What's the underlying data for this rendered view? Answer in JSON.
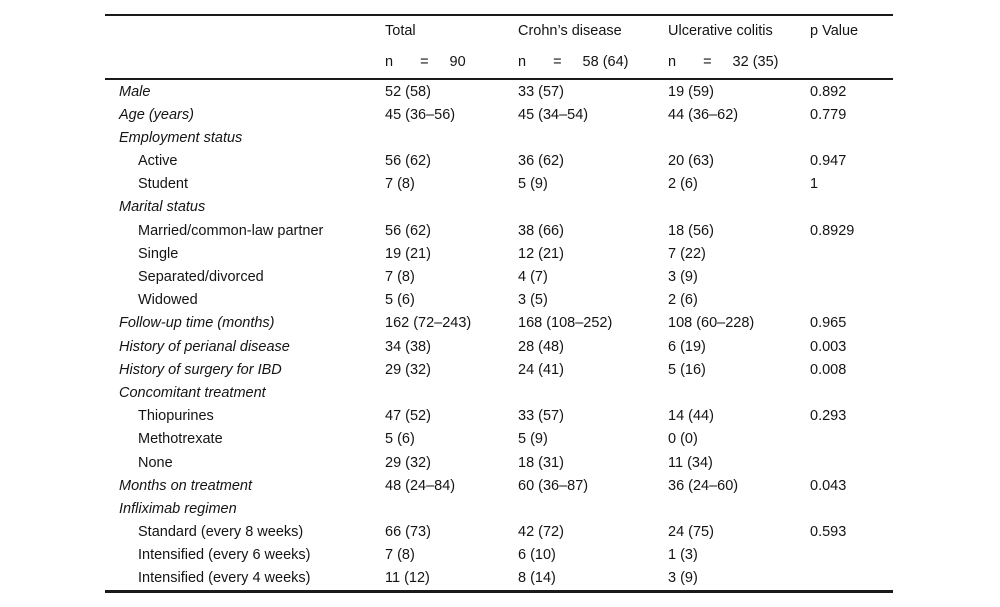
{
  "table": {
    "header": {
      "col_total": "Total",
      "col_crohns": "Crohn’s disease",
      "col_uc": "Ulcerative colitis",
      "col_p": "p Value",
      "n": [
        {
          "prefix": "n",
          "eq": "=",
          "value": "90"
        },
        {
          "prefix": "n",
          "eq": "=",
          "value": "58 (64)"
        },
        {
          "prefix": "n",
          "eq": "=",
          "value": "32 (35)"
        }
      ]
    },
    "rows": [
      {
        "label": "Male",
        "italic": true,
        "indent": false,
        "total": "52 (58)",
        "crohns": "33 (57)",
        "uc": "19 (59)",
        "p": "0.892"
      },
      {
        "label": "Age (years)",
        "italic": true,
        "indent": false,
        "total": "45 (36–56)",
        "crohns": "45 (34–54)",
        "uc": "44 (36–62)",
        "p": "0.779"
      },
      {
        "label": "Employment status",
        "italic": true,
        "indent": false,
        "total": "",
        "crohns": "",
        "uc": "",
        "p": ""
      },
      {
        "label": "Active",
        "italic": false,
        "indent": true,
        "total": "56 (62)",
        "crohns": "36 (62)",
        "uc": "20 (63)",
        "p": "0.947"
      },
      {
        "label": "Student",
        "italic": false,
        "indent": true,
        "total": "7 (8)",
        "crohns": "5 (9)",
        "uc": "2 (6)",
        "p": "1"
      },
      {
        "label": "Marital status",
        "italic": true,
        "indent": false,
        "total": "",
        "crohns": "",
        "uc": "",
        "p": ""
      },
      {
        "label": "Married/common-law partner",
        "italic": false,
        "indent": true,
        "total": "56 (62)",
        "crohns": "38 (66)",
        "uc": "18 (56)",
        "p": "0.8929"
      },
      {
        "label": "Single",
        "italic": false,
        "indent": true,
        "total": "19 (21)",
        "crohns": "12 (21)",
        "uc": "7 (22)",
        "p": ""
      },
      {
        "label": "Separated/divorced",
        "italic": false,
        "indent": true,
        "total": "7 (8)",
        "crohns": "4 (7)",
        "uc": "3 (9)",
        "p": ""
      },
      {
        "label": "Widowed",
        "italic": false,
        "indent": true,
        "total": "5 (6)",
        "crohns": "3 (5)",
        "uc": "2 (6)",
        "p": ""
      },
      {
        "label": "Follow-up time (months)",
        "italic": true,
        "indent": false,
        "total": "162 (72–243)",
        "crohns": "168 (108–252)",
        "uc": "108 (60–228)",
        "p": "0.965"
      },
      {
        "label": "History of perianal disease",
        "italic": true,
        "indent": false,
        "total": "34 (38)",
        "crohns": "28 (48)",
        "uc": "6 (19)",
        "p": "0.003"
      },
      {
        "label": "History of surgery for IBD",
        "italic": true,
        "indent": false,
        "total": "29 (32)",
        "crohns": "24 (41)",
        "uc": "5 (16)",
        "p": "0.008"
      },
      {
        "label": "Concomitant treatment",
        "italic": true,
        "indent": false,
        "total": "",
        "crohns": "",
        "uc": "",
        "p": ""
      },
      {
        "label": "Thiopurines",
        "italic": false,
        "indent": true,
        "total": "47 (52)",
        "crohns": "33 (57)",
        "uc": "14 (44)",
        "p": "0.293"
      },
      {
        "label": "Methotrexate",
        "italic": false,
        "indent": true,
        "total": "5 (6)",
        "crohns": "5 (9)",
        "uc": "0 (0)",
        "p": ""
      },
      {
        "label": "None",
        "italic": false,
        "indent": true,
        "total": "29 (32)",
        "crohns": "18 (31)",
        "uc": "11 (34)",
        "p": ""
      },
      {
        "label": "Months on treatment",
        "italic": true,
        "indent": false,
        "total": "48 (24–84)",
        "crohns": "60 (36–87)",
        "uc": "36 (24–60)",
        "p": "0.043"
      },
      {
        "label": "Infliximab regimen",
        "italic": true,
        "indent": false,
        "total": "",
        "crohns": "",
        "uc": "",
        "p": ""
      },
      {
        "label": "Standard (every 8 weeks)",
        "italic": false,
        "indent": true,
        "total": "66 (73)",
        "crohns": "42 (72)",
        "uc": "24 (75)",
        "p": "0.593"
      },
      {
        "label": "Intensified (every 6 weeks)",
        "italic": false,
        "indent": true,
        "total": "7 (8)",
        "crohns": "6 (10)",
        "uc": "1 (3)",
        "p": ""
      },
      {
        "label": "Intensified (every 4 weeks)",
        "italic": false,
        "indent": true,
        "total": "11 (12)",
        "crohns": "8 (14)",
        "uc": "3 (9)",
        "p": ""
      }
    ]
  }
}
